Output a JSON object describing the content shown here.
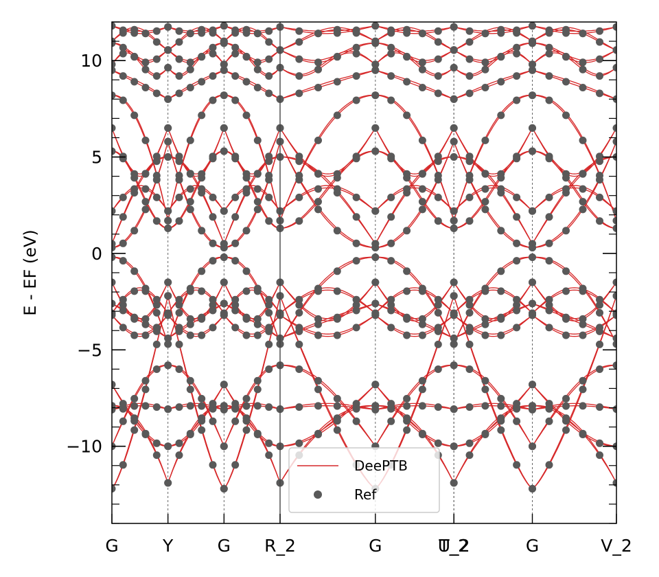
{
  "chart_data": {
    "type": "line",
    "title": "",
    "xlabel": "",
    "ylabel": "E - EF (eV)",
    "ylim": [
      -14,
      12
    ],
    "yticks": [
      -10,
      -5,
      0,
      5,
      10
    ],
    "ytick_labels": [
      "−10",
      "−5",
      "0",
      "5",
      "10"
    ],
    "k_path": {
      "labels": [
        "G",
        "Y",
        "G",
        "R_2",
        "G",
        "U_2",
        "T_2",
        "G",
        "V_2"
      ],
      "positions": [
        0,
        0.5,
        1.0,
        1.5,
        2.35,
        3.05,
        3.05,
        3.75,
        4.5
      ],
      "range": [
        0,
        4.5
      ]
    },
    "series": [
      {
        "name": "DeePTB",
        "style": "line",
        "color": "#d62728"
      },
      {
        "name": "Ref",
        "style": "scatter",
        "color": "#595959"
      }
    ],
    "band_model": {
      "note_segments": [
        "G-Y",
        "Y-G",
        "G-R_2",
        "R_2-G",
        "G-U_2",
        "T_2-G",
        "G-V_2"
      ]
    },
    "legend": {
      "placement": "lower-center",
      "entries": [
        "DeePTB",
        "Ref"
      ]
    }
  }
}
